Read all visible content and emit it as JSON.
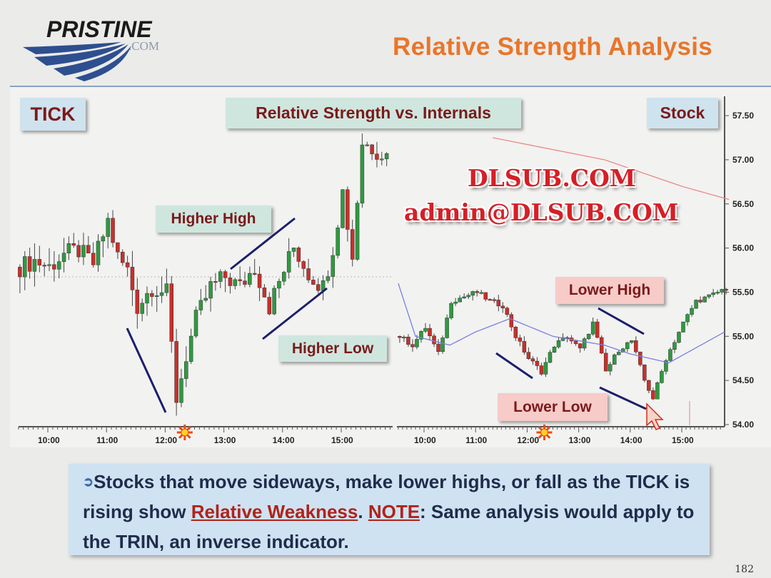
{
  "slide": {
    "logo_text": "PRISTINE",
    "logo_sub": ".COM",
    "title": "Relative Strength Analysis",
    "page_number": "182",
    "watermark_line1": "DLSUB.COM",
    "watermark_line2": "admin@DLSUB.COM",
    "chart_heading": "Relative Strength vs. Internals",
    "note": {
      "part1": "Stocks that move sideways, make lower highs, or fall as the TICK is rising show ",
      "emph1": "Relative Weakness",
      "part2": ".  ",
      "emph2": "NOTE",
      "part3": ":  Same analysis would apply to the TRIN, an inverse indicator."
    }
  },
  "colors": {
    "up": "#2f9a3f",
    "down": "#c8302a",
    "trendline": "#1c1f6b",
    "moving_average_blue": "#7b7fe0",
    "moving_average_red": "#e88a86",
    "title": "#e8762a"
  },
  "chart_data": [
    {
      "type": "candlestick",
      "label": "TICK",
      "x_ticks": [
        "10:00",
        "11:00",
        "12:00",
        "13:00",
        "14:00",
        "15:00"
      ],
      "y_axis": "none",
      "close_path": [
        [
          "9:30",
          48
        ],
        [
          "9:45",
          50
        ],
        [
          "10:00",
          48
        ],
        [
          "10:15",
          52
        ],
        [
          "10:30",
          53
        ],
        [
          "10:45",
          49
        ],
        [
          "11:00",
          62
        ],
        [
          "11:10",
          51
        ],
        [
          "11:20",
          47
        ],
        [
          "11:30",
          36
        ],
        [
          "11:45",
          42
        ],
        [
          "12:00",
          40
        ],
        [
          "12:10",
          8
        ],
        [
          "12:20",
          21
        ],
        [
          "12:30",
          32
        ],
        [
          "12:45",
          42
        ],
        [
          "13:00",
          45
        ],
        [
          "13:15",
          42
        ],
        [
          "13:30",
          48
        ],
        [
          "13:45",
          36
        ],
        [
          "14:00",
          47
        ],
        [
          "14:10",
          54
        ],
        [
          "14:25",
          46
        ],
        [
          "14:40",
          42
        ],
        [
          "14:50",
          54
        ],
        [
          "15:00",
          71
        ],
        [
          "15:10",
          51
        ],
        [
          "15:20",
          86
        ],
        [
          "15:45",
          82
        ]
      ],
      "annotations": [
        "Higher High",
        "Higher Low"
      ],
      "marker": {
        "time": "12:20",
        "icon": "sun-icon"
      }
    },
    {
      "type": "candlestick",
      "label": "Stock",
      "x_ticks": [
        "10:00",
        "11:00",
        "12:00",
        "13:00",
        "14:00",
        "15:00"
      ],
      "y_ticks": [
        "54.00",
        "54.50",
        "55.00",
        "55.50",
        "56.00",
        "56.50",
        "57.00",
        "57.50"
      ],
      "ylim": [
        54.0,
        57.5
      ],
      "close_path": [
        [
          "9:30",
          55.0
        ],
        [
          "9:45",
          54.9
        ],
        [
          "10:00",
          55.1
        ],
        [
          "10:15",
          54.8
        ],
        [
          "10:30",
          55.4
        ],
        [
          "10:45",
          55.45
        ],
        [
          "11:00",
          55.5
        ],
        [
          "11:15",
          55.4
        ],
        [
          "11:30",
          55.35
        ],
        [
          "11:45",
          55.0
        ],
        [
          "12:00",
          54.75
        ],
        [
          "12:15",
          54.6
        ],
        [
          "12:30",
          54.9
        ],
        [
          "12:45",
          55.0
        ],
        [
          "13:00",
          54.85
        ],
        [
          "13:15",
          55.15
        ],
        [
          "13:30",
          54.6
        ],
        [
          "13:45",
          54.85
        ],
        [
          "14:00",
          54.95
        ],
        [
          "14:15",
          54.5
        ],
        [
          "14:25",
          54.3
        ],
        [
          "14:40",
          54.75
        ],
        [
          "15:00",
          55.15
        ],
        [
          "15:15",
          55.4
        ],
        [
          "15:30",
          55.45
        ],
        [
          "15:50",
          55.55
        ]
      ],
      "blue_average": [
        [
          "9:30",
          55.6
        ],
        [
          "9:50",
          55.0
        ],
        [
          "10:30",
          54.9
        ],
        [
          "11:00",
          55.05
        ],
        [
          "11:40",
          55.2
        ],
        [
          "12:30",
          55.0
        ],
        [
          "13:30",
          54.9
        ],
        [
          "14:00",
          54.8
        ],
        [
          "14:45",
          54.7
        ],
        [
          "15:50",
          55.05
        ]
      ],
      "red_average": [
        [
          "11:20",
          57.25
        ],
        [
          "13:30",
          57.0
        ],
        [
          "15:00",
          56.7
        ],
        [
          "15:55",
          56.55
        ]
      ],
      "annotations": [
        "Lower High",
        "Lower Low"
      ],
      "marker": {
        "time": "12:20",
        "icon": "sun-icon"
      }
    }
  ]
}
